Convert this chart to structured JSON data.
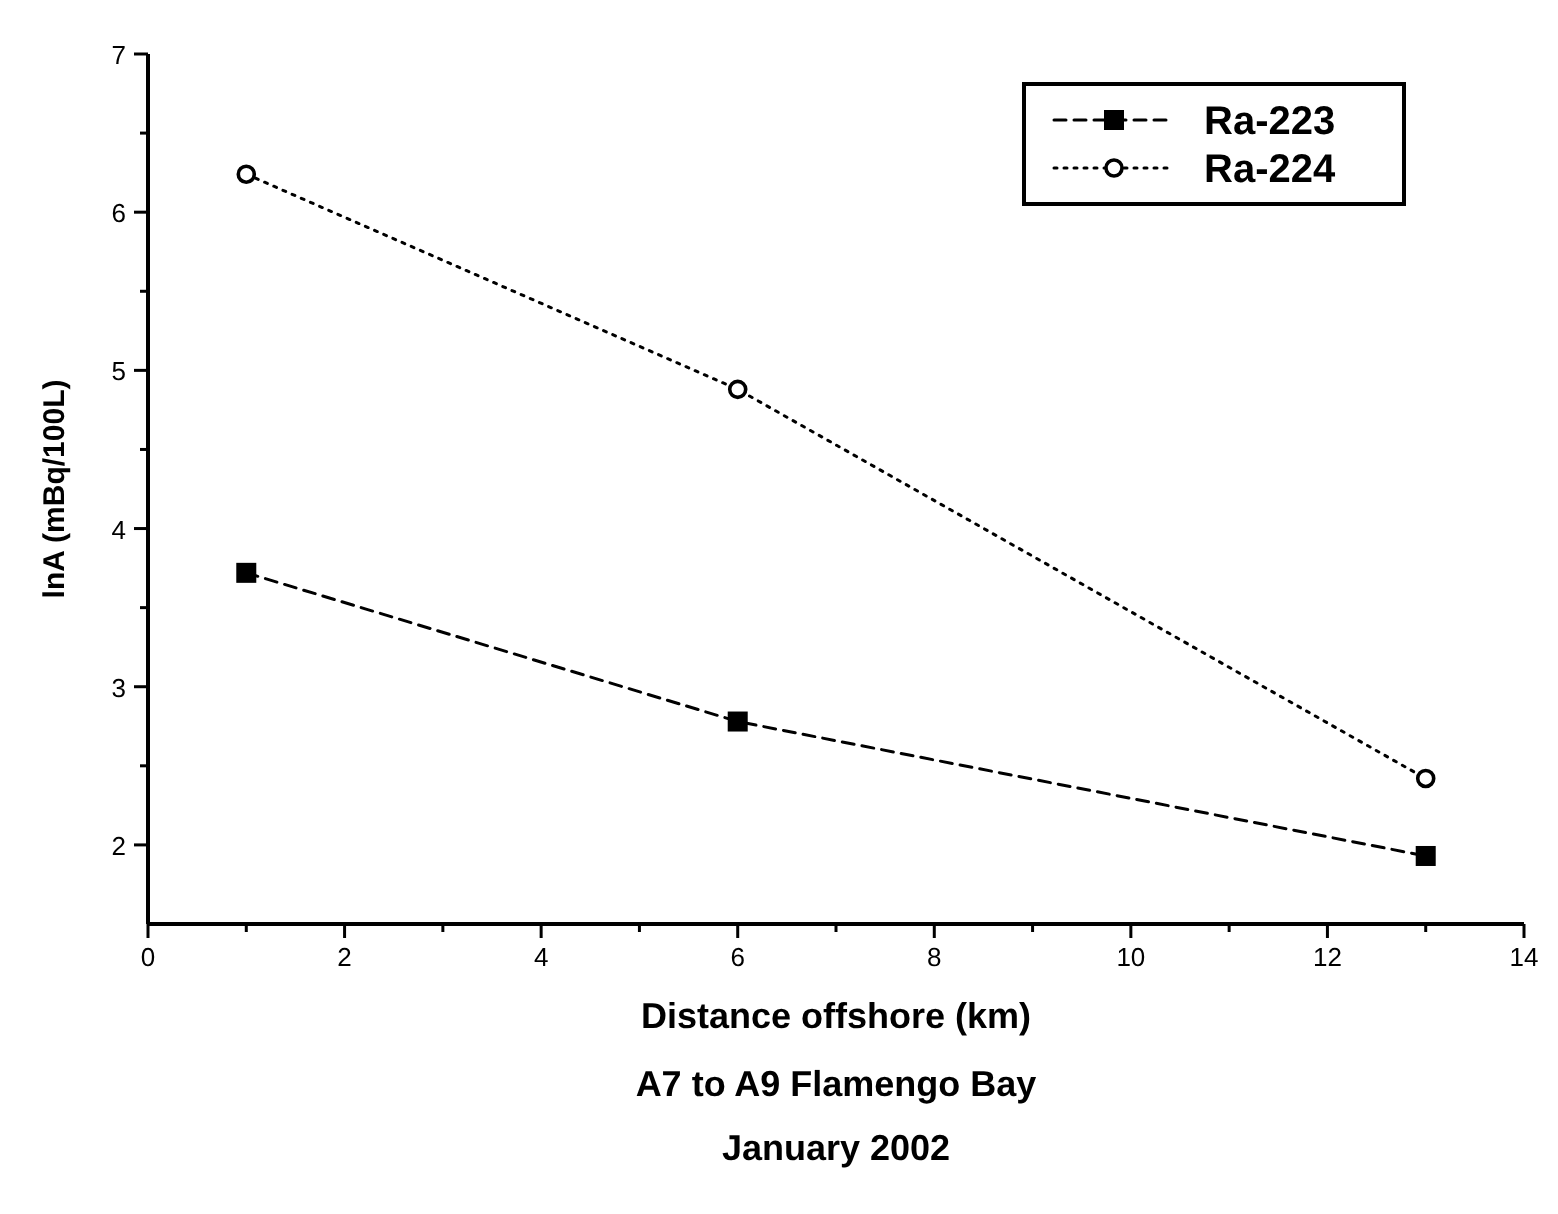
{
  "chart_data": {
    "type": "line",
    "xlabel": "Distance offshore (km)",
    "ylabel": "lnA (mBq/100L)",
    "annotations": [
      "A7 to A9 Flamengo Bay",
      "January 2002"
    ],
    "xlim": [
      0,
      14
    ],
    "xticks": [
      0,
      {
        "value": 1,
        "label": null
      },
      2,
      {
        "value": 3,
        "label": null
      },
      4,
      {
        "value": 5,
        "label": null
      },
      6,
      {
        "value": 7,
        "label": null
      },
      8,
      {
        "value": 9,
        "label": null
      },
      10,
      {
        "value": 11,
        "label": null
      },
      12,
      {
        "value": 13,
        "label": null
      },
      14
    ],
    "ylim": [
      1.5,
      7
    ],
    "yticks": [
      2,
      {
        "value": 2.5,
        "label": null
      },
      3,
      {
        "value": 3.5,
        "label": null
      },
      4,
      {
        "value": 4.5,
        "label": null
      },
      5,
      {
        "value": 5.5,
        "label": null
      },
      6,
      {
        "value": 6.5,
        "label": null
      },
      7
    ],
    "x": [
      1,
      6,
      13
    ],
    "legend": "top right",
    "grid": false,
    "series": [
      {
        "name": "Ra-223",
        "color": "#000000",
        "values": [
          3.72,
          2.78,
          1.93
        ],
        "marker": "square",
        "line_style": "dashed"
      },
      {
        "name": "Ra-224",
        "color": "#000000",
        "values": [
          6.24,
          4.88,
          2.42
        ],
        "marker": "circle",
        "line_style": "dotted"
      }
    ]
  }
}
